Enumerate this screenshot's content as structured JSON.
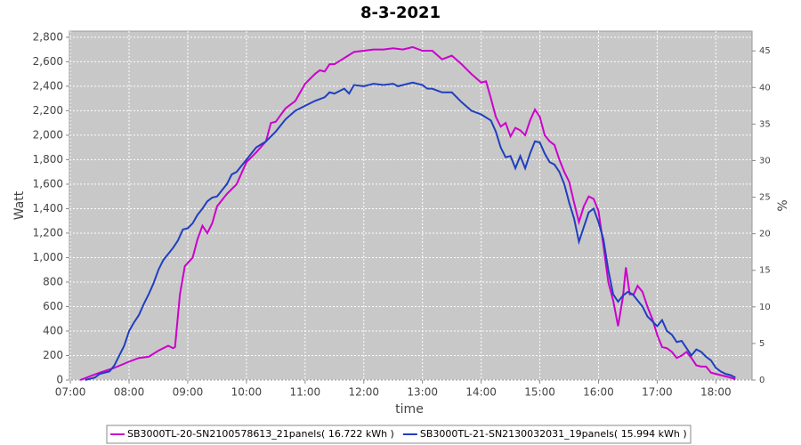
{
  "chart_data": {
    "type": "line",
    "title": "8-3-2021",
    "xlabel": "time",
    "ylabel": "Watt",
    "y2label": "%",
    "xlim": [
      "06:59",
      "18:37"
    ],
    "xticks": [
      "07:00",
      "08:00",
      "09:00",
      "10:00",
      "11:00",
      "12:00",
      "13:00",
      "14:00",
      "15:00",
      "16:00",
      "17:00",
      "18:00"
    ],
    "ylim": [
      0,
      2850
    ],
    "yticks": [
      0,
      200,
      400,
      600,
      800,
      {
        "value": 1000,
        "label": "1,000"
      },
      {
        "value": 1200,
        "label": "1,200"
      },
      {
        "value": 1400,
        "label": "1,400"
      },
      {
        "value": 1600,
        "label": "1,600"
      },
      {
        "value": 1800,
        "label": "1,800"
      },
      {
        "value": 2000,
        "label": "2,000"
      },
      {
        "value": 2200,
        "label": "2,200"
      },
      {
        "value": 2400,
        "label": "2,400"
      },
      {
        "value": 2600,
        "label": "2,600"
      },
      {
        "value": 2800,
        "label": "2,800"
      }
    ],
    "y2lim": [
      0,
      47.7
    ],
    "y2ticks": [
      0,
      5,
      10,
      15,
      20,
      25,
      30,
      35,
      40,
      45
    ],
    "grid": true,
    "legend": "bottom",
    "series": [
      {
        "name": "SB3000TL-20-SN2100578613_21panels( 16.722 kWh )",
        "color": "#cc00cc",
        "x": [
          "07:10",
          "07:20",
          "07:30",
          "07:45",
          "08:00",
          "08:10",
          "08:20",
          "08:30",
          "08:40",
          "08:45",
          "08:47",
          "08:52",
          "08:57",
          "09:05",
          "09:10",
          "09:15",
          "09:20",
          "09:25",
          "09:30",
          "09:40",
          "09:50",
          "10:00",
          "10:10",
          "10:20",
          "10:25",
          "10:30",
          "10:40",
          "10:50",
          "11:00",
          "11:10",
          "11:15",
          "11:20",
          "11:25",
          "11:30",
          "11:40",
          "11:50",
          "12:00",
          "12:10",
          "12:20",
          "12:30",
          "12:40",
          "12:50",
          "13:00",
          "13:10",
          "13:20",
          "13:30",
          "13:40",
          "13:50",
          "14:00",
          "14:05",
          "14:10",
          "14:15",
          "14:20",
          "14:25",
          "14:30",
          "14:35",
          "14:40",
          "14:45",
          "14:50",
          "14:55",
          "15:00",
          "15:05",
          "15:10",
          "15:15",
          "15:20",
          "15:25",
          "15:30",
          "15:35",
          "15:40",
          "15:45",
          "15:50",
          "15:55",
          "16:00",
          "16:05",
          "16:10",
          "16:15",
          "16:20",
          "16:25",
          "16:28",
          "16:32",
          "16:36",
          "16:40",
          "16:45",
          "16:50",
          "16:55",
          "17:00",
          "17:05",
          "17:10",
          "17:15",
          "17:20",
          "17:25",
          "17:30",
          "17:35",
          "17:40",
          "17:45",
          "17:50",
          "17:55",
          "18:00",
          "18:05",
          "18:10",
          "18:15",
          "18:20"
        ],
        "values": [
          0,
          30,
          60,
          100,
          150,
          180,
          190,
          240,
          280,
          260,
          270,
          700,
          930,
          1000,
          1150,
          1260,
          1200,
          1280,
          1420,
          1520,
          1600,
          1780,
          1860,
          1950,
          2100,
          2110,
          2220,
          2280,
          2420,
          2500,
          2530,
          2520,
          2580,
          2580,
          2630,
          2680,
          2690,
          2700,
          2700,
          2710,
          2700,
          2720,
          2690,
          2690,
          2620,
          2650,
          2580,
          2500,
          2430,
          2440,
          2300,
          2150,
          2070,
          2100,
          1990,
          2060,
          2040,
          2000,
          2120,
          2210,
          2150,
          2000,
          1950,
          1920,
          1800,
          1700,
          1620,
          1450,
          1290,
          1420,
          1500,
          1480,
          1380,
          1100,
          800,
          650,
          440,
          680,
          920,
          700,
          700,
          770,
          720,
          600,
          500,
          370,
          270,
          260,
          230,
          180,
          200,
          230,
          180,
          120,
          110,
          110,
          60,
          50,
          40,
          30,
          20,
          5
        ]
      },
      {
        "name": "SB3000TL-21-SN2130032031_19panels( 15.994 kWh )",
        "color": "#1f3fbf",
        "x": [
          "07:15",
          "07:25",
          "07:30",
          "07:40",
          "07:45",
          "07:50",
          "07:55",
          "08:00",
          "08:05",
          "08:10",
          "08:15",
          "08:20",
          "08:25",
          "08:30",
          "08:35",
          "08:40",
          "08:45",
          "08:50",
          "08:55",
          "09:00",
          "09:05",
          "09:10",
          "09:15",
          "09:20",
          "09:25",
          "09:30",
          "09:35",
          "09:40",
          "09:45",
          "09:50",
          "09:55",
          "10:00",
          "10:10",
          "10:20",
          "10:30",
          "10:40",
          "10:50",
          "11:00",
          "11:10",
          "11:20",
          "11:25",
          "11:30",
          "11:40",
          "11:45",
          "11:50",
          "12:00",
          "12:10",
          "12:20",
          "12:30",
          "12:35",
          "12:40",
          "12:50",
          "13:00",
          "13:05",
          "13:10",
          "13:20",
          "13:30",
          "13:40",
          "13:50",
          "14:00",
          "14:10",
          "14:15",
          "14:20",
          "14:25",
          "14:30",
          "14:35",
          "14:40",
          "14:45",
          "14:50",
          "14:55",
          "15:00",
          "15:05",
          "15:10",
          "15:15",
          "15:20",
          "15:25",
          "15:30",
          "15:35",
          "15:40",
          "15:45",
          "15:50",
          "15:55",
          "16:00",
          "16:05",
          "16:10",
          "16:15",
          "16:20",
          "16:25",
          "16:30",
          "16:35",
          "16:40",
          "16:45",
          "16:50",
          "16:55",
          "17:00",
          "17:05",
          "17:10",
          "17:15",
          "17:20",
          "17:25",
          "17:30",
          "17:35",
          "17:40",
          "17:45",
          "17:50",
          "17:55",
          "18:00",
          "18:05",
          "18:10",
          "18:15",
          "18:20"
        ],
        "values": [
          0,
          20,
          50,
          70,
          120,
          200,
          280,
          400,
          470,
          530,
          620,
          700,
          790,
          900,
          980,
          1030,
          1080,
          1140,
          1230,
          1240,
          1280,
          1350,
          1400,
          1460,
          1490,
          1500,
          1550,
          1600,
          1680,
          1700,
          1750,
          1800,
          1900,
          1950,
          2030,
          2130,
          2200,
          2240,
          2280,
          2310,
          2350,
          2340,
          2380,
          2340,
          2410,
          2400,
          2420,
          2410,
          2420,
          2400,
          2410,
          2430,
          2410,
          2380,
          2380,
          2350,
          2350,
          2270,
          2200,
          2170,
          2120,
          2030,
          1900,
          1820,
          1830,
          1730,
          1830,
          1730,
          1850,
          1950,
          1940,
          1850,
          1780,
          1760,
          1700,
          1600,
          1450,
          1320,
          1130,
          1250,
          1370,
          1400,
          1290,
          1150,
          900,
          700,
          640,
          690,
          720,
          700,
          650,
          600,
          520,
          480,
          440,
          490,
          400,
          370,
          310,
          320,
          260,
          200,
          250,
          230,
          190,
          160,
          100,
          70,
          50,
          40,
          20
        ]
      }
    ]
  }
}
